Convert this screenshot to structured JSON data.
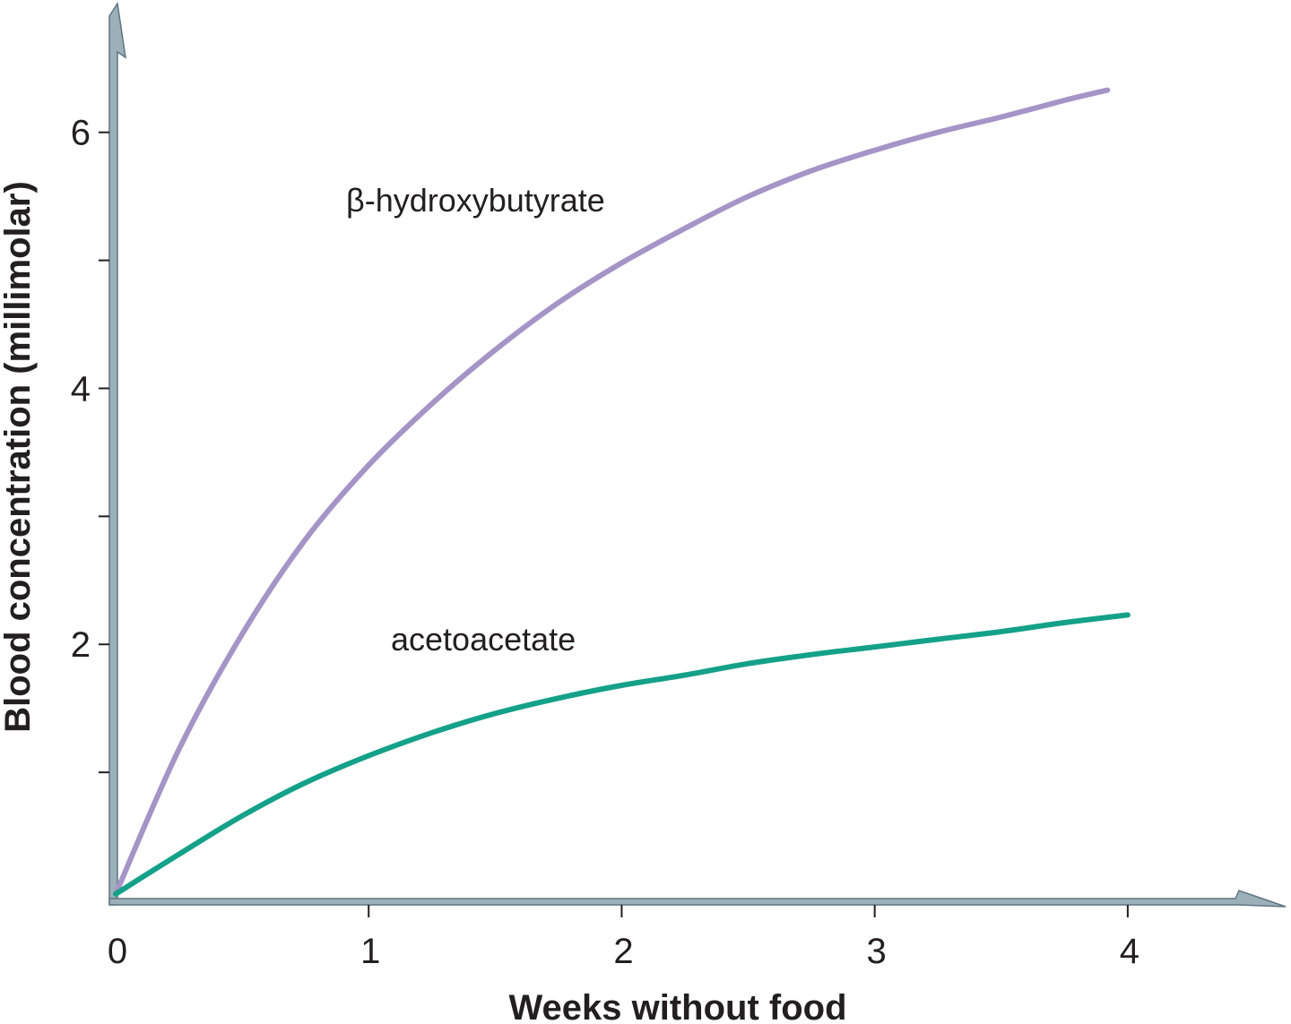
{
  "chart_data": {
    "type": "line",
    "title": "",
    "xlabel": "Weeks without food",
    "ylabel": "Blood concentration (millimolar)",
    "xlim": [
      0,
      4.5
    ],
    "ylim": [
      0,
      6.95
    ],
    "x_ticks": [
      0,
      1,
      2,
      3,
      4
    ],
    "x_tick_labels": [
      "0",
      "1",
      "2",
      "3",
      "4"
    ],
    "y_ticks": [
      1,
      2,
      3,
      4,
      5,
      6
    ],
    "y_tick_labels": [
      "",
      "2",
      "",
      "4",
      "",
      "6"
    ],
    "grid": false,
    "legend": "none (series labelled directly on the plot)",
    "series": [
      {
        "name": "β-hydroxybutyrate",
        "color": "#a594c6",
        "x": [
          0,
          0.25,
          0.5,
          0.75,
          1,
          1.25,
          1.5,
          1.75,
          2,
          2.25,
          2.5,
          2.75,
          3,
          3.25,
          3.5,
          3.75,
          3.92
        ],
        "y": [
          0.05,
          1.18,
          2.08,
          2.82,
          3.4,
          3.88,
          4.3,
          4.67,
          4.98,
          5.25,
          5.5,
          5.7,
          5.86,
          6.0,
          6.12,
          6.25,
          6.33
        ]
      },
      {
        "name": "acetoacetate",
        "color": "#14a189",
        "x": [
          0,
          0.25,
          0.5,
          0.75,
          1,
          1.25,
          1.5,
          1.75,
          2,
          2.25,
          2.5,
          2.75,
          3,
          3.25,
          3.5,
          3.75,
          4.0
        ],
        "y": [
          0.05,
          0.36,
          0.66,
          0.92,
          1.13,
          1.31,
          1.46,
          1.58,
          1.68,
          1.76,
          1.85,
          1.92,
          1.98,
          2.04,
          2.1,
          2.17,
          2.23
        ]
      }
    ],
    "axis_color": "#9cb0ba"
  }
}
